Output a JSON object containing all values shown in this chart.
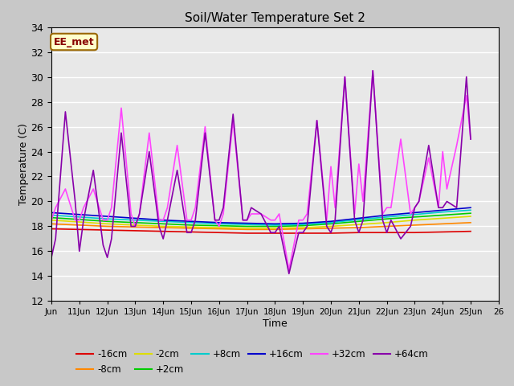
{
  "title": "Soil/Water Temperature Set 2",
  "xlabel": "Time",
  "ylabel": "Temperature (C)",
  "ylim": [
    12,
    34
  ],
  "yticks": [
    12,
    14,
    16,
    18,
    20,
    22,
    24,
    26,
    28,
    30,
    32,
    34
  ],
  "xlim": [
    0,
    16
  ],
  "xtick_positions": [
    0,
    1,
    2,
    3,
    4,
    5,
    6,
    7,
    8,
    9,
    10,
    11,
    12,
    13,
    14,
    15,
    16
  ],
  "xtick_labels": [
    "Jun",
    "11Jun",
    "12Jun",
    "13Jun",
    "14Jun",
    "15Jun",
    "16Jun",
    "17Jun",
    "18Jun",
    "19Jun",
    "20Jun",
    "21Jun",
    "22Jun",
    "23Jun",
    "24Jun",
    "25Jun",
    "26"
  ],
  "fig_bg": "#c8c8c8",
  "plot_bg": "#e8e8e8",
  "annotation_text": "EE_met",
  "annotation_bg": "#ffffcc",
  "annotation_border": "#996600",
  "series_order": [
    "-16cm",
    "-8cm",
    "-2cm",
    "+2cm",
    "+8cm",
    "+16cm",
    "+32cm",
    "+64cm"
  ],
  "colors": {
    "-16cm": "#dd0000",
    "-8cm": "#ff8800",
    "-2cm": "#dddd00",
    "+2cm": "#00cc00",
    "+8cm": "#00cccc",
    "+16cm": "#0000cc",
    "+32cm": "#ff44ff",
    "+64cm": "#8800aa"
  },
  "lw": 1.2,
  "simple_x": [
    0,
    1,
    2,
    3,
    4,
    5,
    6,
    7,
    8,
    9,
    10,
    11,
    12,
    13,
    14,
    15
  ],
  "simple": {
    "-16cm": [
      17.8,
      17.75,
      17.7,
      17.65,
      17.6,
      17.55,
      17.5,
      17.45,
      17.45,
      17.45,
      17.45,
      17.5,
      17.5,
      17.5,
      17.55,
      17.6
    ],
    "-8cm": [
      18.2,
      18.1,
      18.0,
      17.95,
      17.9,
      17.85,
      17.8,
      17.75,
      17.75,
      17.8,
      17.85,
      17.9,
      18.0,
      18.1,
      18.2,
      18.3
    ],
    "-2cm": [
      18.5,
      18.35,
      18.2,
      18.1,
      18.0,
      17.95,
      17.9,
      17.85,
      17.85,
      17.9,
      18.0,
      18.15,
      18.3,
      18.5,
      18.65,
      18.8
    ],
    "+2cm": [
      18.7,
      18.55,
      18.4,
      18.3,
      18.2,
      18.1,
      18.05,
      18.0,
      18.0,
      18.05,
      18.2,
      18.4,
      18.6,
      18.75,
      18.9,
      19.05
    ],
    "+8cm": [
      18.9,
      18.75,
      18.6,
      18.5,
      18.4,
      18.3,
      18.2,
      18.15,
      18.1,
      18.15,
      18.3,
      18.55,
      18.75,
      18.95,
      19.15,
      19.3
    ],
    "+16cm": [
      19.1,
      18.95,
      18.8,
      18.65,
      18.5,
      18.4,
      18.3,
      18.25,
      18.2,
      18.25,
      18.4,
      18.65,
      18.9,
      19.1,
      19.3,
      19.5
    ]
  },
  "osc64_x": [
    0.0,
    0.15,
    0.5,
    0.85,
    1.0,
    1.15,
    1.5,
    1.85,
    2.0,
    2.15,
    2.5,
    2.85,
    3.0,
    3.15,
    3.5,
    3.85,
    4.0,
    4.15,
    4.5,
    4.85,
    5.0,
    5.15,
    5.5,
    5.85,
    6.0,
    6.15,
    6.5,
    6.85,
    7.0,
    7.15,
    7.5,
    7.85,
    8.0,
    8.15,
    8.5,
    8.85,
    9.0,
    9.15,
    9.5,
    9.85,
    10.0,
    10.15,
    10.5,
    10.85,
    11.0,
    11.15,
    11.5,
    11.85,
    12.0,
    12.15,
    12.5,
    12.85,
    13.0,
    13.15,
    13.5,
    13.85,
    14.0,
    14.15,
    14.5,
    14.85,
    15.0
  ],
  "osc64_y": [
    15.5,
    17.0,
    27.2,
    20.0,
    16.0,
    18.5,
    22.5,
    16.5,
    15.5,
    17.0,
    25.5,
    18.0,
    18.0,
    19.0,
    24.0,
    18.0,
    17.0,
    18.5,
    22.5,
    17.5,
    17.5,
    18.5,
    25.5,
    18.5,
    18.5,
    19.5,
    27.0,
    18.5,
    18.5,
    19.5,
    19.0,
    17.5,
    17.5,
    18.0,
    14.2,
    17.5,
    17.5,
    18.0,
    26.5,
    18.0,
    17.5,
    18.5,
    30.0,
    18.5,
    17.5,
    18.5,
    30.5,
    18.5,
    17.5,
    18.5,
    17.0,
    18.0,
    19.5,
    20.0,
    24.5,
    19.5,
    19.5,
    20.0,
    19.5,
    30.0,
    25.0
  ],
  "osc32_x": [
    0.0,
    0.15,
    0.5,
    0.85,
    1.0,
    1.15,
    1.5,
    1.85,
    2.0,
    2.15,
    2.5,
    2.85,
    3.0,
    3.15,
    3.5,
    3.85,
    4.0,
    4.15,
    4.5,
    4.85,
    5.0,
    5.15,
    5.5,
    5.85,
    6.0,
    6.15,
    6.5,
    6.85,
    7.0,
    7.15,
    7.5,
    7.85,
    8.0,
    8.15,
    8.5,
    8.85,
    9.0,
    9.15,
    9.5,
    9.85,
    10.0,
    10.15,
    10.5,
    10.85,
    11.0,
    11.15,
    11.5,
    11.85,
    12.0,
    12.15,
    12.5,
    12.85,
    13.0,
    13.15,
    13.5,
    13.85,
    14.0,
    14.15,
    14.5,
    14.85,
    15.0
  ],
  "osc32_y": [
    18.5,
    19.5,
    21.0,
    18.5,
    18.5,
    19.5,
    21.0,
    18.5,
    18.5,
    19.5,
    27.5,
    19.0,
    18.0,
    19.0,
    25.5,
    18.5,
    18.5,
    19.5,
    24.5,
    18.5,
    18.5,
    19.5,
    26.0,
    18.5,
    18.0,
    19.0,
    26.5,
    18.5,
    18.5,
    19.0,
    19.0,
    18.5,
    18.5,
    19.0,
    14.5,
    18.5,
    18.5,
    19.0,
    26.5,
    18.5,
    22.8,
    19.5,
    30.0,
    19.0,
    23.0,
    20.0,
    30.5,
    19.0,
    19.5,
    19.5,
    25.0,
    19.0,
    19.5,
    20.0,
    23.5,
    19.5,
    24.0,
    21.0,
    24.5,
    28.5,
    25.0
  ]
}
